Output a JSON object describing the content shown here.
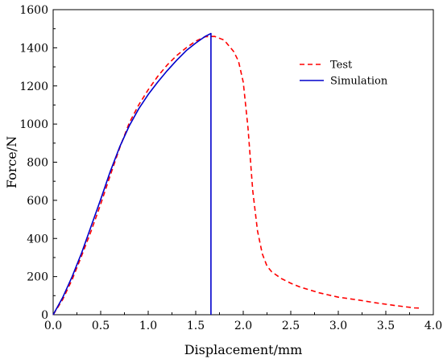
{
  "chart_data": {
    "type": "line",
    "title": "",
    "xlabel": "Displacement/mm",
    "ylabel": "Force/N",
    "xlim": [
      0.0,
      4.0
    ],
    "ylim": [
      0,
      1600
    ],
    "xticks": [
      "0.0",
      "0.5",
      "1.0",
      "1.5",
      "2.0",
      "2.5",
      "3.0",
      "3.5",
      "4.0"
    ],
    "yticks": [
      "0",
      "200",
      "400",
      "600",
      "800",
      "1000",
      "1200",
      "1400",
      "1600"
    ],
    "grid": false,
    "legend_position": "top-right",
    "series": [
      {
        "name": "Test",
        "color": "#ff0000",
        "style": "dashed",
        "x": [
          0.0,
          0.1,
          0.2,
          0.3,
          0.4,
          0.5,
          0.6,
          0.7,
          0.8,
          0.9,
          1.0,
          1.1,
          1.2,
          1.3,
          1.4,
          1.5,
          1.6,
          1.7,
          1.8,
          1.9,
          1.95,
          2.0,
          2.05,
          2.1,
          2.15,
          2.2,
          2.25,
          2.3,
          2.4,
          2.5,
          2.6,
          2.8,
          3.0,
          3.2,
          3.4,
          3.6,
          3.8,
          3.85
        ],
        "y": [
          0,
          80,
          185,
          310,
          440,
          580,
          730,
          875,
          1005,
          1100,
          1180,
          1250,
          1310,
          1360,
          1400,
          1435,
          1458,
          1460,
          1440,
          1380,
          1330,
          1220,
          980,
          650,
          440,
          320,
          255,
          225,
          190,
          165,
          145,
          115,
          92,
          78,
          62,
          48,
          36,
          35
        ]
      },
      {
        "name": "Simulation",
        "color": "#0000cc",
        "style": "solid",
        "x": [
          0.0,
          0.1,
          0.2,
          0.3,
          0.4,
          0.5,
          0.6,
          0.7,
          0.8,
          0.9,
          1.0,
          1.1,
          1.2,
          1.3,
          1.4,
          1.5,
          1.6,
          1.66,
          1.66
        ],
        "y": [
          0,
          90,
          200,
          325,
          465,
          605,
          750,
          880,
          990,
          1080,
          1155,
          1220,
          1280,
          1335,
          1385,
          1425,
          1460,
          1475,
          0
        ]
      }
    ]
  }
}
